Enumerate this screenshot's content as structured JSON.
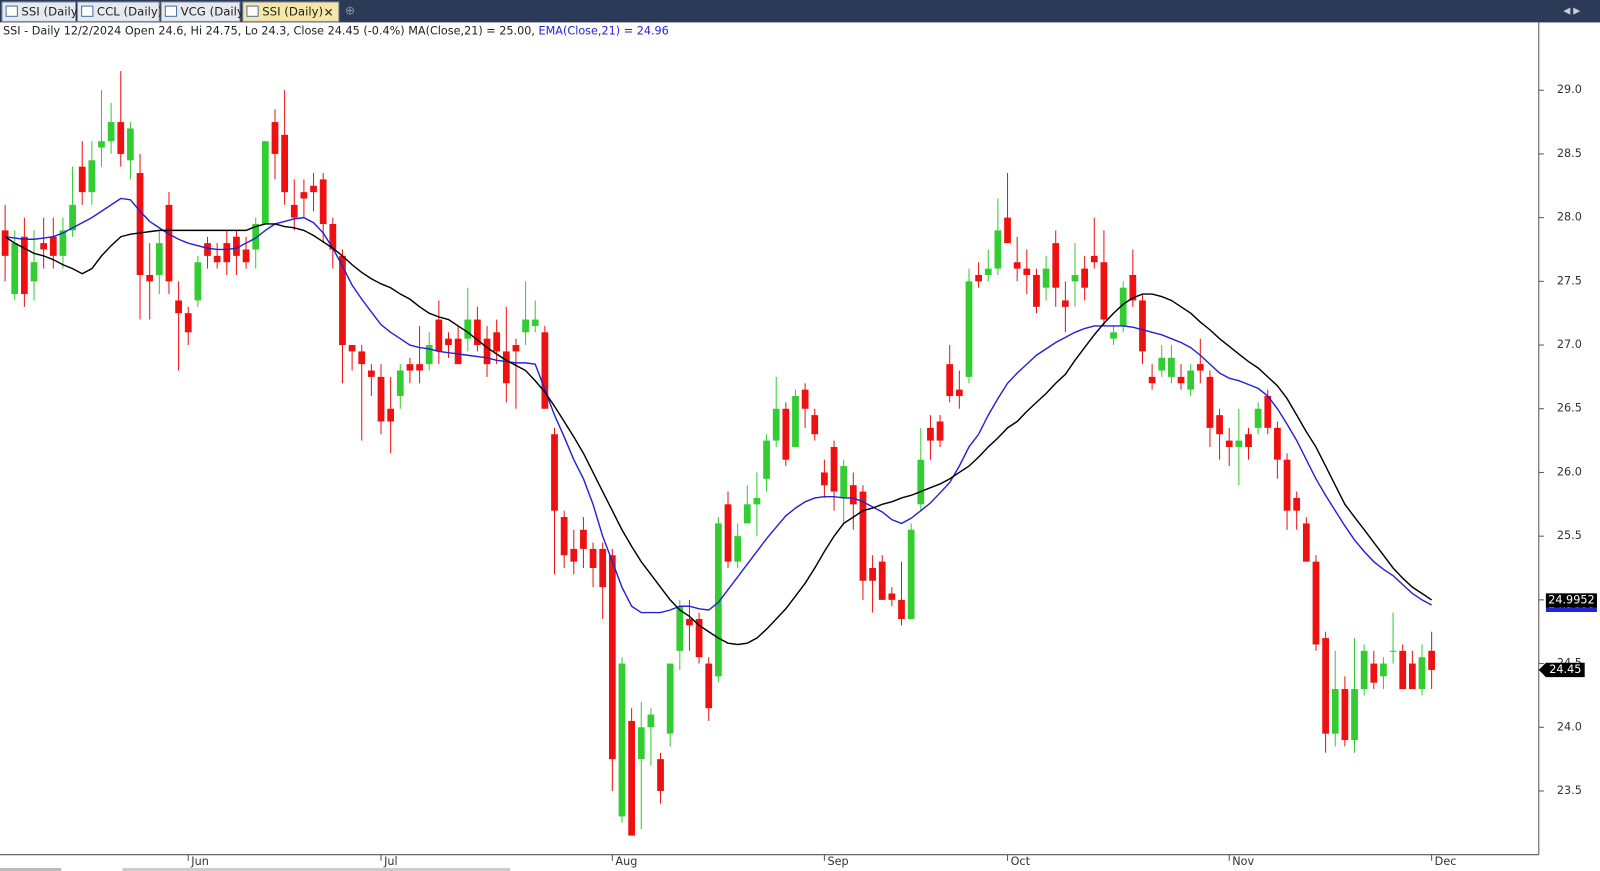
{
  "tabs": [
    "SSI (Daily)",
    "CCL (Daily)",
    "VCG (Daily)",
    "SSI (Daily)"
  ],
  "active_tab": 3,
  "chart_data": {
    "type": "candlestick",
    "info": "SSI - Daily 12/2/2024 Open 24.6, Hi 24.75, Lo 24.3, Close 24.45 (-0.4%) MA(Close,21) = 25.00, ",
    "ema_info": "EMA(Close,21) = 24.96",
    "up_color": "#33cc33",
    "down_color": "#ee1111",
    "ylim": [
      23.0,
      29.5
    ],
    "yticks": [
      {
        "value": 29,
        "label": "29.0"
      },
      28.5,
      {
        "value": 28,
        "label": "28.0"
      },
      27.5,
      {
        "value": 27,
        "label": "27.0"
      },
      26.5,
      {
        "value": 26,
        "label": "26.0"
      },
      25.5,
      {
        "value": 25,
        "label": "25.0"
      },
      24.5,
      {
        "value": 24,
        "label": "24.0"
      },
      23.5
    ],
    "categories": [
      null,
      null,
      null,
      null,
      null,
      null,
      null,
      null,
      null,
      null,
      null,
      null,
      null,
      null,
      null,
      null,
      null,
      null,
      null,
      "Jun",
      null,
      null,
      null,
      null,
      null,
      null,
      null,
      null,
      null,
      null,
      null,
      null,
      null,
      null,
      null,
      null,
      null,
      null,
      null,
      "Jul",
      null,
      null,
      null,
      null,
      null,
      null,
      null,
      null,
      null,
      null,
      null,
      null,
      null,
      null,
      null,
      null,
      null,
      null,
      null,
      null,
      null,
      null,
      null,
      "Aug",
      null,
      null,
      null,
      null,
      null,
      null,
      null,
      null,
      null,
      null,
      null,
      null,
      null,
      null,
      null,
      null,
      null,
      null,
      null,
      null,
      null,
      "Sep",
      null,
      null,
      null,
      null,
      null,
      null,
      null,
      null,
      null,
      null,
      null,
      null,
      null,
      null,
      null,
      null,
      null,
      null,
      "Oct",
      null,
      null,
      null,
      null,
      null,
      null,
      null,
      null,
      null,
      null,
      null,
      null,
      null,
      null,
      null,
      null,
      null,
      null,
      null,
      null,
      null,
      null,
      "Nov",
      null,
      null,
      null,
      null,
      null,
      null,
      null,
      null,
      null,
      null,
      null,
      null,
      null,
      null,
      null,
      null,
      null,
      null,
      null,
      null,
      "Dec"
    ],
    "open": [
      27.9,
      27.4,
      27.85,
      27.5,
      27.8,
      27.85,
      27.7,
      27.9,
      28.4,
      28.2,
      28.55,
      28.6,
      28.75,
      28.45,
      28.35,
      27.55,
      27.55,
      28.1,
      27.35,
      27.25,
      27.35,
      27.8,
      27.7,
      27.8,
      27.85,
      27.75,
      27.75,
      27.95,
      28.75,
      28.65,
      28.1,
      28.2,
      28.25,
      28.3,
      27.95,
      27.7,
      27.0,
      26.95,
      26.8,
      26.75,
      26.5,
      26.6,
      26.85,
      26.85,
      26.85,
      27.2,
      27.05,
      27.05,
      27.05,
      27.2,
      27.05,
      27.1,
      26.95,
      27.0,
      27.1,
      27.15,
      27.1,
      26.3,
      25.65,
      25.4,
      25.55,
      25.4,
      25.4,
      25.35,
      23.3,
      24.05,
      23.75,
      24.0,
      23.75,
      23.95,
      24.6,
      24.85,
      24.85,
      24.5,
      24.4,
      25.75,
      25.3,
      25.6,
      25.75,
      25.95,
      26.25,
      26.5,
      26.2,
      26.65,
      26.45,
      26.0,
      26.2,
      25.8,
      25.9,
      25.85,
      25.25,
      25.3,
      25.05,
      25.0,
      24.85,
      25.75,
      26.35,
      26.4,
      26.85,
      26.65,
      26.75,
      27.55,
      27.55,
      27.6,
      28.0,
      27.65,
      27.6,
      27.55,
      27.45,
      27.8,
      27.35,
      27.5,
      27.6,
      27.7,
      27.65,
      27.05,
      27.15,
      27.55,
      27.35,
      26.75,
      26.8,
      26.75,
      26.75,
      26.65,
      26.85,
      26.75,
      26.45,
      26.25,
      26.2,
      26.3,
      26.35,
      26.6,
      26.35,
      26.1,
      25.8,
      25.6,
      25.3,
      24.7,
      23.95,
      24.3,
      23.9,
      24.3,
      24.5,
      24.4,
      24.6,
      24.6,
      24.5,
      24.3,
      24.6
    ],
    "high": [
      28.1,
      27.9,
      28.0,
      27.9,
      28.0,
      28.0,
      28.0,
      28.4,
      28.6,
      28.6,
      29.0,
      28.9,
      29.15,
      28.75,
      28.5,
      27.8,
      27.9,
      28.2,
      27.5,
      27.3,
      27.7,
      27.85,
      27.8,
      27.9,
      27.9,
      27.85,
      28.0,
      28.6,
      28.85,
      29.0,
      28.3,
      28.3,
      28.35,
      28.35,
      28.0,
      27.75,
      27.0,
      27.0,
      26.85,
      26.85,
      26.75,
      26.85,
      26.9,
      27.15,
      27.1,
      27.35,
      27.1,
      27.15,
      27.45,
      27.3,
      27.15,
      27.2,
      27.3,
      27.05,
      27.5,
      27.35,
      27.15,
      26.35,
      25.7,
      25.55,
      25.65,
      25.45,
      25.45,
      25.4,
      24.55,
      24.15,
      24.2,
      24.15,
      23.8,
      24.5,
      25.0,
      25.0,
      24.9,
      24.55,
      25.65,
      25.85,
      25.6,
      25.9,
      26.0,
      26.3,
      26.75,
      26.55,
      26.65,
      26.7,
      26.5,
      26.1,
      26.25,
      26.1,
      26.0,
      25.9,
      25.35,
      25.35,
      25.1,
      25.3,
      25.6,
      26.35,
      26.45,
      26.45,
      27.0,
      26.8,
      27.6,
      27.65,
      27.75,
      28.15,
      28.35,
      27.85,
      27.75,
      27.6,
      27.7,
      27.9,
      27.5,
      27.8,
      27.7,
      28.0,
      27.9,
      27.15,
      27.5,
      27.75,
      27.4,
      26.85,
      27.0,
      27.0,
      26.85,
      26.85,
      27.05,
      26.8,
      26.5,
      26.35,
      26.5,
      26.35,
      26.55,
      26.65,
      26.4,
      26.15,
      25.85,
      25.65,
      25.35,
      24.75,
      24.6,
      24.4,
      24.7,
      24.65,
      24.6,
      24.55,
      24.9,
      24.65,
      24.6,
      24.65,
      24.75
    ],
    "low": [
      27.5,
      27.35,
      27.3,
      27.35,
      27.6,
      27.6,
      27.6,
      27.85,
      28.1,
      28.1,
      28.4,
      28.5,
      28.4,
      28.3,
      27.2,
      27.2,
      27.4,
      27.4,
      26.8,
      27.0,
      27.3,
      27.6,
      27.6,
      27.55,
      27.55,
      27.6,
      27.6,
      27.95,
      28.3,
      28.1,
      27.9,
      28.0,
      28.05,
      27.8,
      27.6,
      26.7,
      26.8,
      26.25,
      26.6,
      26.3,
      26.15,
      26.5,
      26.7,
      26.7,
      26.8,
      26.85,
      26.9,
      26.85,
      26.95,
      26.95,
      26.75,
      26.85,
      26.55,
      26.5,
      27.0,
      27.1,
      26.5,
      25.2,
      25.25,
      25.2,
      25.25,
      25.1,
      24.85,
      23.5,
      23.25,
      23.15,
      23.2,
      23.7,
      23.4,
      23.85,
      24.45,
      24.6,
      24.5,
      24.05,
      24.35,
      25.25,
      25.25,
      25.6,
      25.5,
      25.85,
      26.2,
      26.05,
      26.2,
      26.35,
      26.25,
      25.8,
      25.7,
      25.6,
      25.55,
      25.0,
      24.9,
      25.0,
      24.95,
      24.8,
      24.85,
      25.7,
      26.1,
      26.2,
      26.55,
      26.5,
      26.7,
      27.45,
      27.5,
      27.55,
      27.8,
      27.5,
      27.4,
      27.25,
      27.35,
      27.3,
      27.1,
      27.3,
      27.35,
      27.6,
      27.15,
      27.0,
      27.1,
      27.3,
      26.85,
      26.65,
      26.75,
      26.7,
      26.65,
      26.6,
      26.7,
      26.2,
      26.1,
      26.05,
      25.9,
      26.1,
      26.3,
      26.3,
      25.95,
      25.55,
      25.55,
      25.3,
      24.6,
      23.8,
      23.85,
      23.85,
      23.8,
      24.25,
      24.3,
      24.3,
      24.5,
      24.3,
      24.3,
      24.25,
      24.3
    ],
    "close": [
      27.7,
      27.8,
      27.4,
      27.65,
      27.75,
      27.7,
      27.9,
      28.1,
      28.2,
      28.45,
      28.6,
      28.75,
      28.5,
      28.7,
      27.55,
      27.5,
      27.8,
      27.5,
      27.25,
      27.1,
      27.65,
      27.7,
      27.65,
      27.65,
      27.7,
      27.65,
      27.95,
      28.6,
      28.5,
      28.2,
      28.0,
      28.15,
      28.2,
      27.95,
      27.75,
      27.0,
      26.95,
      26.85,
      26.75,
      26.4,
      26.4,
      26.8,
      26.8,
      26.8,
      27.0,
      26.95,
      27.0,
      26.85,
      27.2,
      27.0,
      26.85,
      26.95,
      26.7,
      26.95,
      27.2,
      27.2,
      26.5,
      25.7,
      25.35,
      25.3,
      25.4,
      25.25,
      25.1,
      23.75,
      24.5,
      23.15,
      24.0,
      24.1,
      23.5,
      24.5,
      24.95,
      24.8,
      24.55,
      24.15,
      25.6,
      25.3,
      25.5,
      25.75,
      25.8,
      26.25,
      26.5,
      26.1,
      26.6,
      26.5,
      26.3,
      25.9,
      25.85,
      26.05,
      25.75,
      25.15,
      25.15,
      25.0,
      25.0,
      24.85,
      25.55,
      26.1,
      26.25,
      26.25,
      26.6,
      26.6,
      27.5,
      27.5,
      27.6,
      27.9,
      27.8,
      27.6,
      27.55,
      27.3,
      27.6,
      27.45,
      27.3,
      27.55,
      27.45,
      27.65,
      27.2,
      27.1,
      27.45,
      27.35,
      26.95,
      26.7,
      26.9,
      26.9,
      26.7,
      26.8,
      26.8,
      26.35,
      26.3,
      26.2,
      26.25,
      26.2,
      26.5,
      26.35,
      26.1,
      25.7,
      25.7,
      25.3,
      24.65,
      23.95,
      24.3,
      23.9,
      24.3,
      24.6,
      24.35,
      24.5,
      24.6,
      24.3,
      24.3,
      24.55,
      24.45
    ],
    "series": [
      {
        "color": "#2323d4",
        "last_value": 24.9608,
        "values": [
          27.85,
          27.84,
          27.83,
          27.83,
          27.84,
          27.85,
          27.88,
          27.92,
          27.96,
          28.0,
          28.05,
          28.1,
          28.15,
          28.14,
          28.05,
          27.97,
          27.92,
          27.87,
          27.83,
          27.8,
          27.78,
          27.76,
          27.75,
          27.75,
          27.76,
          27.8,
          27.84,
          27.9,
          27.95,
          27.97,
          27.99,
          28.0,
          27.96,
          27.88,
          27.76,
          27.62,
          27.47,
          27.36,
          27.26,
          27.16,
          27.1,
          27.05,
          27.0,
          26.98,
          26.97,
          26.95,
          26.94,
          26.93,
          26.92,
          26.91,
          26.9,
          26.88,
          26.87,
          26.86,
          26.86,
          26.85,
          26.65,
          26.45,
          26.28,
          26.1,
          25.95,
          25.75,
          25.5,
          25.3,
          25.1,
          24.95,
          24.9,
          24.9,
          24.9,
          24.92,
          24.95,
          24.95,
          24.93,
          24.92,
          24.98,
          25.08,
          25.18,
          25.28,
          25.38,
          25.48,
          25.57,
          25.66,
          25.72,
          25.77,
          25.8,
          25.81,
          25.81,
          25.8,
          25.8,
          25.77,
          25.73,
          25.69,
          25.63,
          25.6,
          25.64,
          25.7,
          25.76,
          25.84,
          25.92,
          26.05,
          26.2,
          26.3,
          26.45,
          26.58,
          26.7,
          26.78,
          26.85,
          26.92,
          26.97,
          27.02,
          27.06,
          27.1,
          27.13,
          27.15,
          27.15,
          27.15,
          27.15,
          27.14,
          27.12,
          27.1,
          27.08,
          27.05,
          27.02,
          26.98,
          26.92,
          26.85,
          26.78,
          26.74,
          26.72,
          26.69,
          26.66,
          26.6,
          26.5,
          26.38,
          26.25,
          26.1,
          25.95,
          25.82,
          25.7,
          25.58,
          25.47,
          25.38,
          25.3,
          25.24,
          25.19,
          25.12,
          25.05,
          25.0,
          24.96
        ]
      },
      {
        "color": "#000000",
        "last_value": 24.9952,
        "values": [
          27.85,
          27.8,
          27.76,
          27.72,
          27.7,
          27.67,
          27.63,
          27.6,
          27.56,
          27.6,
          27.7,
          27.78,
          27.85,
          27.87,
          27.88,
          27.89,
          27.9,
          27.9,
          27.9,
          27.9,
          27.9,
          27.9,
          27.9,
          27.9,
          27.9,
          27.9,
          27.93,
          27.95,
          27.95,
          27.93,
          27.92,
          27.9,
          27.86,
          27.81,
          27.76,
          27.7,
          27.63,
          27.57,
          27.52,
          27.48,
          27.45,
          27.4,
          27.36,
          27.3,
          27.25,
          27.22,
          27.2,
          27.15,
          27.1,
          27.04,
          26.98,
          26.93,
          26.88,
          26.84,
          26.8,
          26.72,
          26.63,
          26.52,
          26.4,
          26.28,
          26.15,
          26.0,
          25.85,
          25.7,
          25.55,
          25.42,
          25.3,
          25.2,
          25.1,
          25.0,
          24.92,
          24.87,
          24.8,
          24.75,
          24.7,
          24.66,
          24.65,
          24.66,
          24.7,
          24.77,
          24.85,
          24.93,
          25.03,
          25.13,
          25.25,
          25.38,
          25.5,
          25.6,
          25.65,
          25.7,
          25.72,
          25.75,
          25.77,
          25.8,
          25.82,
          25.85,
          25.88,
          25.91,
          25.95,
          26.0,
          26.05,
          26.12,
          26.2,
          26.27,
          26.35,
          26.4,
          26.48,
          26.55,
          26.62,
          26.7,
          26.77,
          26.88,
          26.98,
          27.08,
          27.17,
          27.25,
          27.32,
          27.37,
          27.4,
          27.4,
          27.38,
          27.35,
          27.3,
          27.25,
          27.18,
          27.12,
          27.05,
          26.99,
          26.93,
          26.87,
          26.82,
          26.75,
          26.68,
          26.58,
          26.45,
          26.32,
          26.2,
          26.05,
          25.9,
          25.75,
          25.65,
          25.55,
          25.45,
          25.35,
          25.25,
          25.17,
          25.1,
          25.05,
          25.0
        ]
      }
    ]
  }
}
